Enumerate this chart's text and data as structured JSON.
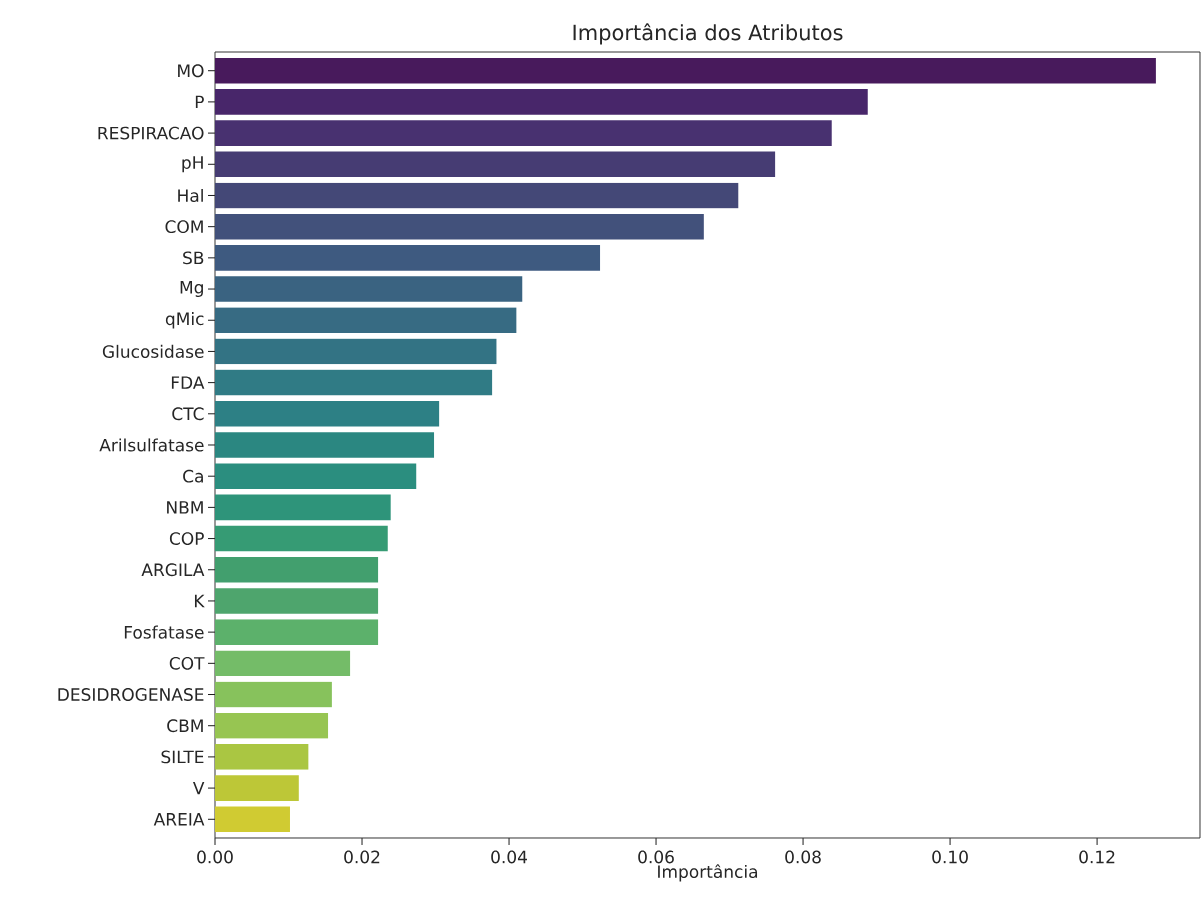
{
  "chart_data": {
    "type": "bar",
    "orientation": "horizontal",
    "title": "Importância dos Atributos",
    "xlabel": "Importância",
    "categories": [
      "MO",
      "P",
      "RESPIRACAO",
      "pH",
      "Hal",
      "COM",
      "SB",
      "Mg",
      "qMic",
      "Glucosidase",
      "FDA",
      "CTC",
      "Arilsulfatase",
      "Ca",
      "NBM",
      "COP",
      "ARGILA",
      "K",
      "Fosfatase",
      "COT",
      "DESIDROGENASE",
      "CBM",
      "SILTE",
      "V",
      "AREIA"
    ],
    "values": [
      0.128,
      0.0888,
      0.0839,
      0.0762,
      0.0712,
      0.0665,
      0.0524,
      0.0418,
      0.041,
      0.0383,
      0.0377,
      0.0305,
      0.0298,
      0.0274,
      0.0239,
      0.0235,
      0.0222,
      0.0222,
      0.0222,
      0.0184,
      0.0159,
      0.0154,
      0.0127,
      0.0114,
      0.0102
    ],
    "colors": [
      "#481a5c",
      "#48266a",
      "#483170",
      "#463c73",
      "#444877",
      "#42517b",
      "#3e5a80",
      "#3a6381",
      "#376b83",
      "#337384",
      "#307b85",
      "#2d8085",
      "#2b8781",
      "#2b8e7f",
      "#2e947a",
      "#369b74",
      "#429f6e",
      "#4ea56d",
      "#5cb16b",
      "#74bc68",
      "#87c25c",
      "#97c552",
      "#aac642",
      "#bdc737",
      "#d0cb32"
    ],
    "xlim": [
      0,
      0.134
    ],
    "xticks": [
      {
        "value": 0,
        "label": "0.00"
      },
      {
        "value": 0.02,
        "label": "0.02"
      },
      {
        "value": 0.04,
        "label": "0.04"
      },
      {
        "value": 0.06,
        "label": "0.06"
      },
      {
        "value": 0.08,
        "label": "0.08"
      },
      {
        "value": 0.1,
        "label": "0.10"
      },
      {
        "value": 0.12,
        "label": "0.12"
      }
    ]
  }
}
